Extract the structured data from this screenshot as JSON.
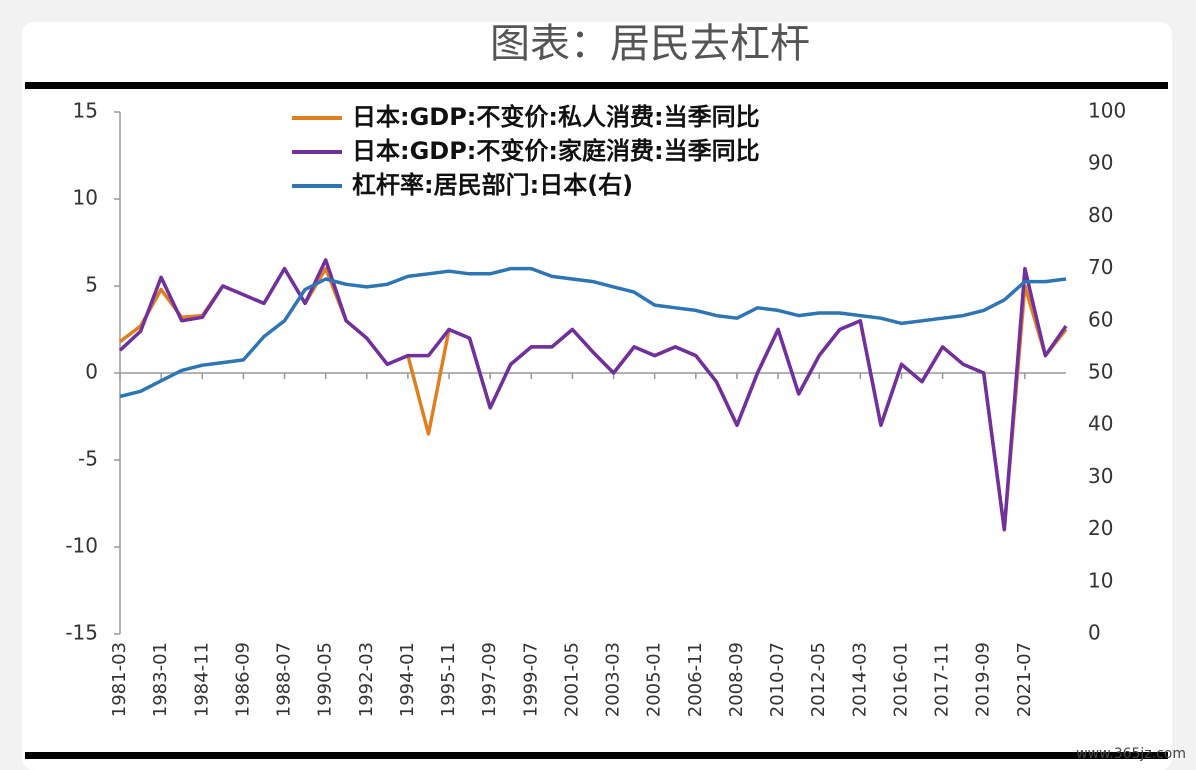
{
  "page_title": "图表：居民去杠杆",
  "watermark": "www.365jz.com",
  "chart_data": {
    "type": "line",
    "categories": [
      "1981-03",
      null,
      "1983-01",
      null,
      "1984-11",
      null,
      "1986-09",
      null,
      "1988-07",
      null,
      "1990-05",
      null,
      "1992-03",
      null,
      "1994-01",
      null,
      "1995-11",
      null,
      "1997-09",
      null,
      "1999-07",
      null,
      "2001-05",
      null,
      "2003-03",
      null,
      "2005-01",
      null,
      "2006-11",
      null,
      "2008-09",
      null,
      "2010-07",
      null,
      "2012-05",
      null,
      "2014-03",
      null,
      "2016-01",
      null,
      "2017-11",
      null,
      "2019-09",
      null,
      "2021-07",
      null,
      null
    ],
    "series": [
      {
        "name": "日本:GDP:不变价:私人消费:当季同比",
        "color": "#e07f1f",
        "values": [
          1.8,
          2.7,
          4.8,
          3.2,
          3.3,
          5,
          4.5,
          4,
          6,
          4,
          6,
          3,
          2,
          0.5,
          1,
          -3.5,
          2.5,
          2,
          -2,
          0.5,
          1.5,
          1.5,
          2.5,
          1.2,
          0,
          1.5,
          1,
          1.5,
          1,
          -0.5,
          -3,
          0,
          2.5,
          -1.2,
          1,
          2.5,
          3,
          -3,
          0.5,
          -0.5,
          1.5,
          0.5,
          0,
          -9,
          5,
          1,
          2.5
        ]
      },
      {
        "name": "日本:GDP:不变价:家庭消费:当季同比",
        "color": "#7030a0",
        "values": [
          1.3,
          2.4,
          5.5,
          3.0,
          3.2,
          5,
          4.5,
          4,
          6,
          4,
          6.5,
          3,
          2,
          0.5,
          1,
          1,
          2.5,
          2,
          -2,
          0.5,
          1.5,
          1.5,
          2.5,
          1.2,
          0,
          1.5,
          1,
          1.5,
          1,
          -0.5,
          -3,
          0,
          2.5,
          -1.2,
          1,
          2.5,
          3,
          -3,
          0.5,
          -0.5,
          1.5,
          0.5,
          0,
          -9,
          6,
          1,
          2.7
        ]
      },
      {
        "name": "杠杆率:居民部门:日本(右)",
        "color": "#2e75b6",
        "axis": "y2",
        "values": [
          45.5,
          46.5,
          48.5,
          50.5,
          51.5,
          52,
          52.5,
          57,
          60,
          66,
          68,
          67,
          66.5,
          67,
          68.5,
          69,
          69.5,
          69,
          69,
          70,
          70,
          68.5,
          68,
          67.5,
          66.5,
          65.5,
          63,
          62.5,
          62,
          61,
          60.5,
          62.5,
          62,
          61,
          61.5,
          61.5,
          61,
          60.5,
          59.5,
          60,
          60.5,
          61,
          62,
          64,
          67.5,
          67.5,
          68
        ]
      }
    ],
    "ylim": [
      -15,
      15
    ],
    "yticks": [
      -15,
      -10,
      -5,
      0,
      5,
      10,
      15
    ],
    "y2lim": [
      0,
      100
    ],
    "y2ticks": [
      0,
      10,
      20,
      30,
      40,
      50,
      60,
      70,
      80,
      90,
      100
    ],
    "legend": "top"
  }
}
